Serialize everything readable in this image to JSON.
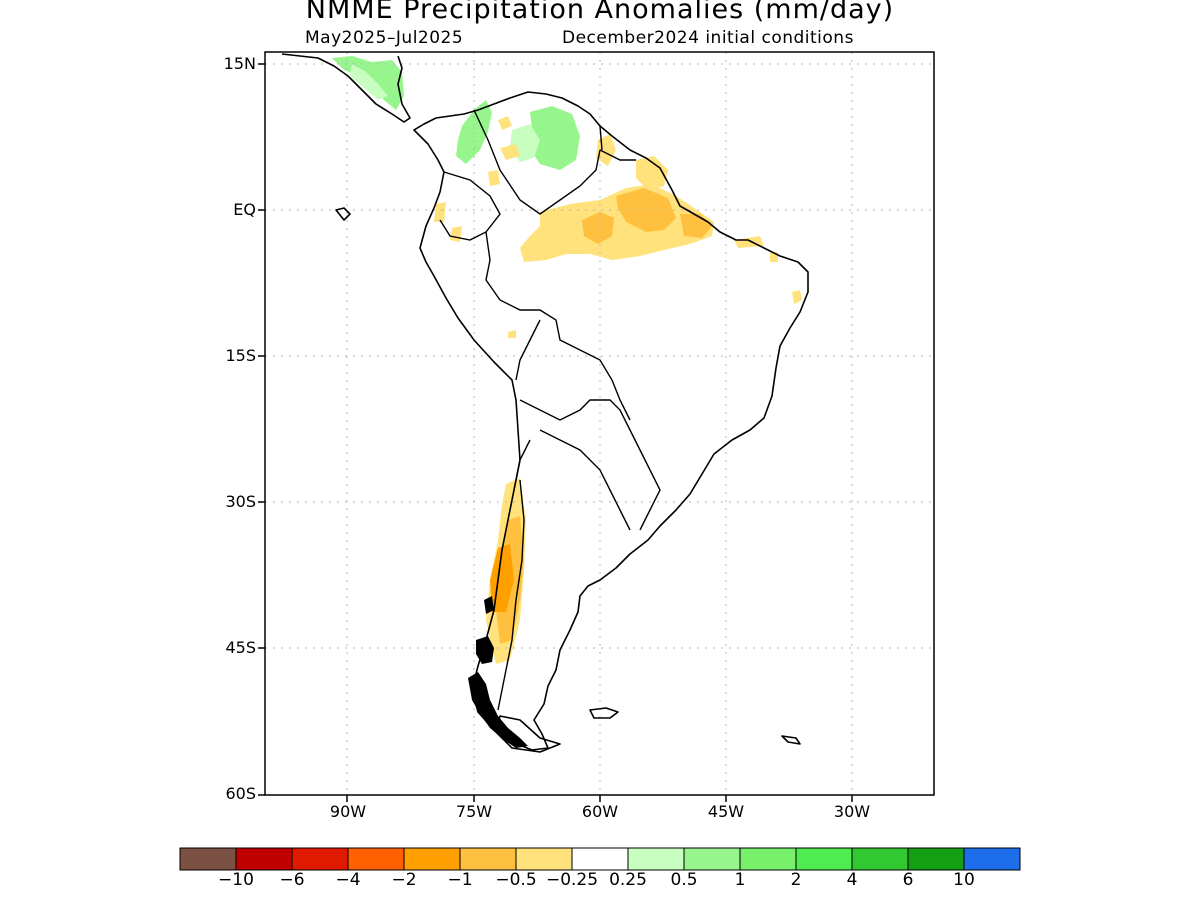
{
  "header": {
    "title": "NMME Precipitation Anomalies (mm/day)",
    "period": "May2025–Jul2025",
    "init": "December2024 initial conditions"
  },
  "axes": {
    "lat_labels": [
      {
        "label": "15N",
        "lat": 15
      },
      {
        "label": "EQ",
        "lat": 0
      },
      {
        "label": "15S",
        "lat": -15
      },
      {
        "label": "30S",
        "lat": -30
      },
      {
        "label": "45S",
        "lat": -45
      },
      {
        "label": "60S",
        "lat": -60
      }
    ],
    "lon_labels": [
      {
        "label": "90W",
        "lon": -90
      },
      {
        "label": "75W",
        "lon": -75
      },
      {
        "label": "60W",
        "lon": -60
      },
      {
        "label": "45W",
        "lon": -45
      },
      {
        "label": "30W",
        "lon": -30
      }
    ],
    "lon_range": [
      -100,
      -20
    ],
    "lat_range": [
      -60,
      15
    ]
  },
  "colorbar": {
    "colors": [
      "#7a5142",
      "#c00000",
      "#e01a00",
      "#ff6000",
      "#ffa000",
      "#ffc040",
      "#ffe27c",
      "#ffffff",
      "#c8ffc0",
      "#96f58c",
      "#78f06c",
      "#50eb50",
      "#32c832",
      "#14a014",
      "#1e6eeb"
    ],
    "labels": [
      "−10",
      "−6",
      "−4",
      "−2",
      "−1",
      "−0.5",
      "−0.25",
      "0.25",
      "0.5",
      "1",
      "2",
      "4",
      "6",
      "10"
    ]
  },
  "colors": {
    "light_green": "#c8ffc0",
    "green": "#96f58c",
    "light_yellow": "#ffe27c",
    "yellow_orange": "#ffc040",
    "orange": "#ffa000"
  }
}
